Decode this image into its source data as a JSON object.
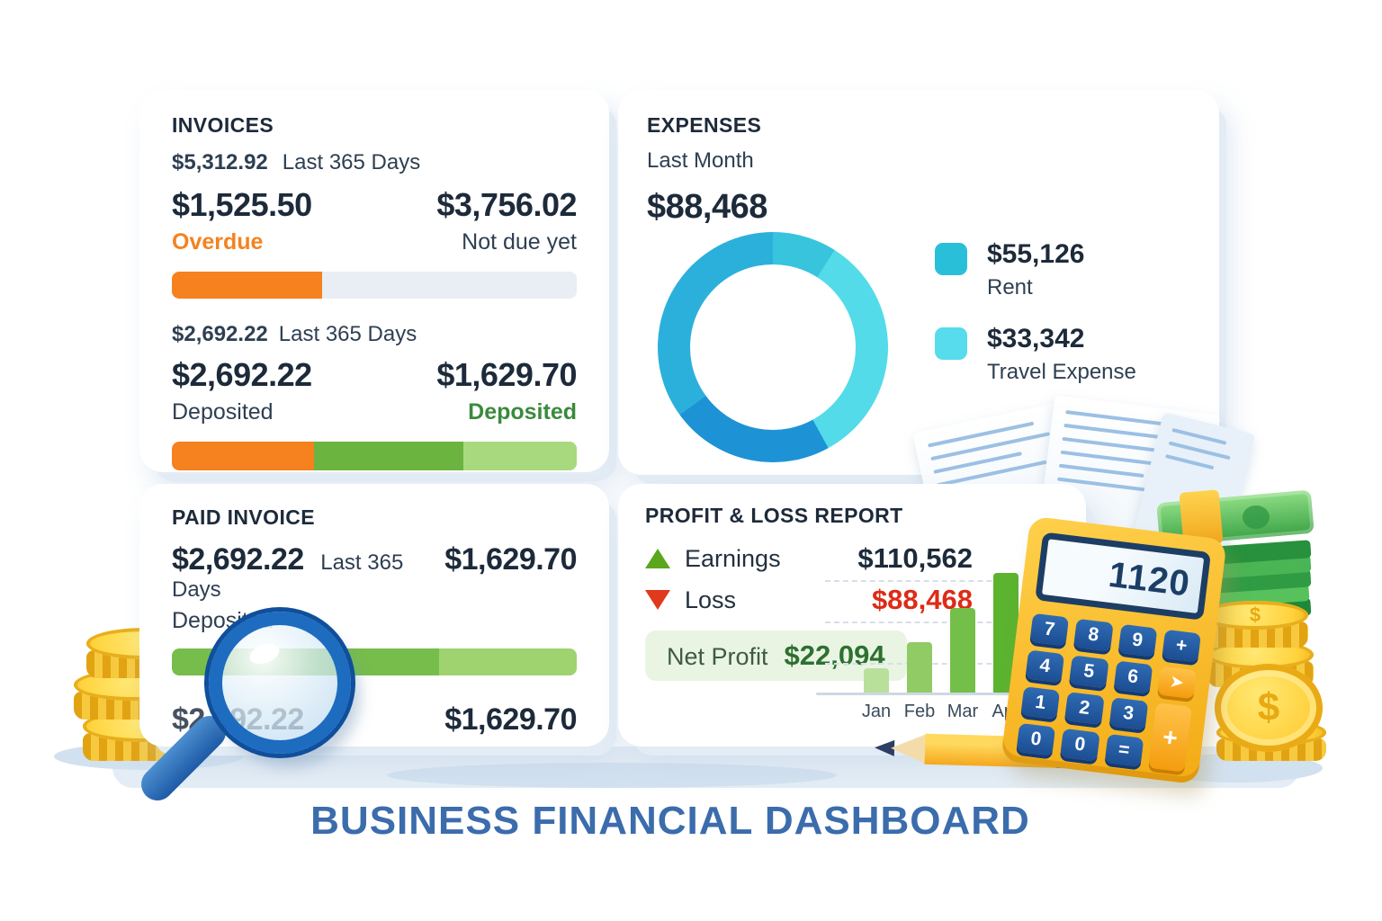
{
  "page_title": "BUSINESS FINANCIAL DASHBOARD",
  "invoices": {
    "title": "INVOICES",
    "summary_value": "$5,312.92",
    "summary_period": "Last 365 Days",
    "overdue_value": "$1,525.50",
    "overdue_label": "Overdue",
    "not_due_value": "$3,756.02",
    "not_due_label": "Not due yet",
    "overdue_pct": 37,
    "deposit_summary_value": "$2,692.22",
    "deposit_summary_period": "Last 365 Days",
    "deposited_left_value": "$2,692.22",
    "deposited_left_label": "Deposited",
    "deposited_right_value": "$1,629.70",
    "deposited_right_label": "Deposited",
    "bar2": {
      "orange": 35,
      "green": 37,
      "light": 28
    }
  },
  "expenses": {
    "title": "EXPENSES",
    "period": "Last Month",
    "total": "$88,468",
    "legend": [
      {
        "value": "$55,126",
        "label": "Rent",
        "color": "#29bfd9"
      },
      {
        "value": "$33,342",
        "label": "Travel Expense",
        "color": "#56dcec"
      }
    ]
  },
  "paid_invoice": {
    "title": "PAID INVOICE",
    "value_left": "$2,692.22",
    "period": "Last 365 Days",
    "value_right": "$1,629.70",
    "label": "Deposited",
    "bar": {
      "dark": 66,
      "light": 34
    },
    "bottom_left": "$2,692.22",
    "bottom_right": "$1,629.70"
  },
  "profit_loss": {
    "title": "PROFIT & LOSS REPORT",
    "earnings_label": "Earnings",
    "earnings_value": "$110,562",
    "loss_label": "Loss",
    "loss_value": "$88,468",
    "net_profit_label": "Net Profit",
    "net_profit_value": "$22,094"
  },
  "calculator": {
    "display": "1120",
    "keys": [
      {
        "label": "7"
      },
      {
        "label": "8"
      },
      {
        "label": "9"
      },
      {
        "label": "+"
      },
      {
        "label": "4"
      },
      {
        "label": "5"
      },
      {
        "label": "6"
      },
      {
        "label": "➤"
      },
      {
        "label": "1"
      },
      {
        "label": "2"
      },
      {
        "label": "3"
      },
      {
        "label": "+"
      },
      {
        "label": "0"
      },
      {
        "label": "0"
      },
      {
        "label": "="
      }
    ]
  },
  "chart_data": [
    {
      "type": "pie",
      "donut": true,
      "title": "EXPENSES",
      "subtitle": "Last Month",
      "total_label": "$88,468",
      "labels": [
        "Rent",
        "Travel Expense"
      ],
      "values": [
        55126,
        33342
      ],
      "legend_position": "right",
      "render_segments": [
        {
          "color": "#38c4dd",
          "pct": 9
        },
        {
          "color": "#53dbe9",
          "pct": 33
        },
        {
          "color": "#1d93d6",
          "pct": 23
        },
        {
          "color": "#2bb0dc",
          "pct": 35
        }
      ]
    },
    {
      "type": "bar",
      "title": "PROFIT & LOSS REPORT",
      "categories": [
        "Jan",
        "Feb",
        "Mar",
        "Apr"
      ],
      "values": [
        19,
        40,
        67,
        95
      ],
      "ylim": [
        0,
        100
      ],
      "grid": "dashed-horizontal",
      "colors": [
        "#b9e09b",
        "#90cb66",
        "#74bf49",
        "#5bb32f"
      ]
    }
  ],
  "colors": {
    "orange": "#f5821f",
    "green_text": "#3a8a3d",
    "red_text": "#dd2b17",
    "earnings_triangle": "#5aa71e",
    "loss_triangle": "#e0391c",
    "net_profit_bg": "#e9f5e2",
    "title_blue": "#3b6cac",
    "dark_text": "#1d2a3a"
  }
}
